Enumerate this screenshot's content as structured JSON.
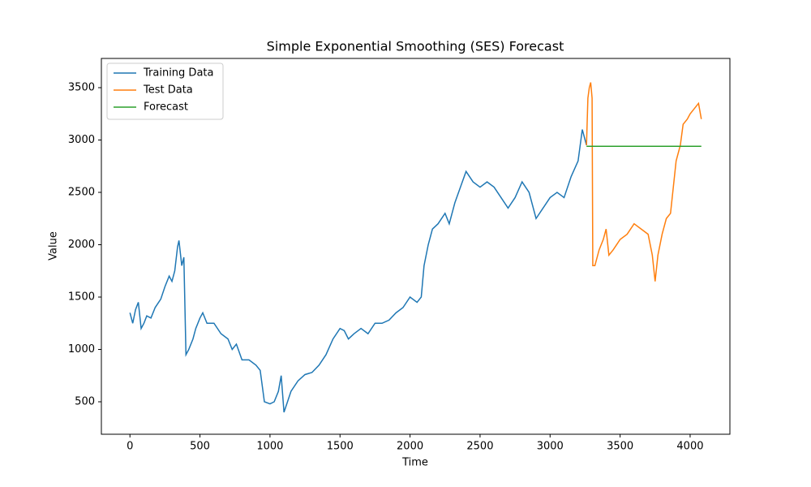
{
  "chart_data": {
    "type": "line",
    "title": "Simple Exponential Smoothing (SES) Forecast",
    "x_label": "Time",
    "y_label": "Value",
    "xlim": [
      -204,
      4284
    ],
    "ylim": [
      190,
      3779
    ],
    "xticks": [
      0,
      500,
      1000,
      1500,
      2000,
      2500,
      3000,
      3500,
      4000
    ],
    "yticks": [
      500,
      1000,
      1500,
      2000,
      2500,
      3000,
      3500
    ],
    "legend": "upper left",
    "series": [
      {
        "name": "Training Data",
        "color": "#1f77b4",
        "x": [
          0,
          20,
          40,
          60,
          80,
          100,
          120,
          150,
          180,
          220,
          250,
          280,
          300,
          320,
          340,
          350,
          370,
          385,
          400,
          420,
          450,
          470,
          500,
          520,
          550,
          600,
          650,
          700,
          730,
          760,
          800,
          850,
          900,
          930,
          960,
          1000,
          1030,
          1060,
          1080,
          1100,
          1120,
          1150,
          1200,
          1250,
          1300,
          1350,
          1400,
          1450,
          1500,
          1530,
          1560,
          1600,
          1650,
          1700,
          1750,
          1800,
          1850,
          1900,
          1950,
          2000,
          2050,
          2080,
          2100,
          2130,
          2160,
          2200,
          2250,
          2280,
          2320,
          2360,
          2400,
          2450,
          2500,
          2550,
          2600,
          2650,
          2700,
          2750,
          2800,
          2850,
          2900,
          2950,
          3000,
          3050,
          3100,
          3150,
          3200,
          3230,
          3260
        ],
        "values": [
          1350,
          1250,
          1380,
          1450,
          1200,
          1250,
          1320,
          1300,
          1400,
          1480,
          1600,
          1700,
          1650,
          1750,
          1980,
          2040,
          1800,
          1880,
          950,
          1000,
          1100,
          1200,
          1300,
          1350,
          1250,
          1250,
          1150,
          1100,
          1000,
          1050,
          900,
          900,
          850,
          800,
          500,
          480,
          500,
          600,
          750,
          400,
          480,
          600,
          700,
          760,
          780,
          850,
          950,
          1100,
          1200,
          1180,
          1100,
          1150,
          1200,
          1150,
          1250,
          1250,
          1280,
          1350,
          1400,
          1500,
          1450,
          1500,
          1800,
          2000,
          2150,
          2200,
          2300,
          2200,
          2400,
          2550,
          2700,
          2600,
          2550,
          2600,
          2550,
          2450,
          2350,
          2450,
          2600,
          2500,
          2250,
          2350,
          2450,
          2500,
          2450,
          2650,
          2800,
          3100,
          2950
        ]
      },
      {
        "name": "Test Data",
        "color": "#ff7f0e",
        "x": [
          3260,
          3270,
          3280,
          3290,
          3300,
          3305,
          3320,
          3350,
          3380,
          3400,
          3420,
          3450,
          3500,
          3550,
          3600,
          3650,
          3700,
          3730,
          3750,
          3770,
          3800,
          3830,
          3860,
          3880,
          3900,
          3930,
          3950,
          3980,
          4000,
          4030,
          4060,
          4080
        ],
        "values": [
          2950,
          3400,
          3500,
          3550,
          3400,
          1800,
          1800,
          1950,
          2050,
          2150,
          1900,
          1950,
          2050,
          2100,
          2200,
          2150,
          2100,
          1900,
          1650,
          1900,
          2100,
          2250,
          2300,
          2550,
          2800,
          2950,
          3150,
          3200,
          3250,
          3300,
          3350,
          3200
        ]
      },
      {
        "name": "Forecast",
        "color": "#2ca02c",
        "x": [
          3260,
          4080
        ],
        "values": [
          2940,
          2940
        ]
      }
    ]
  }
}
